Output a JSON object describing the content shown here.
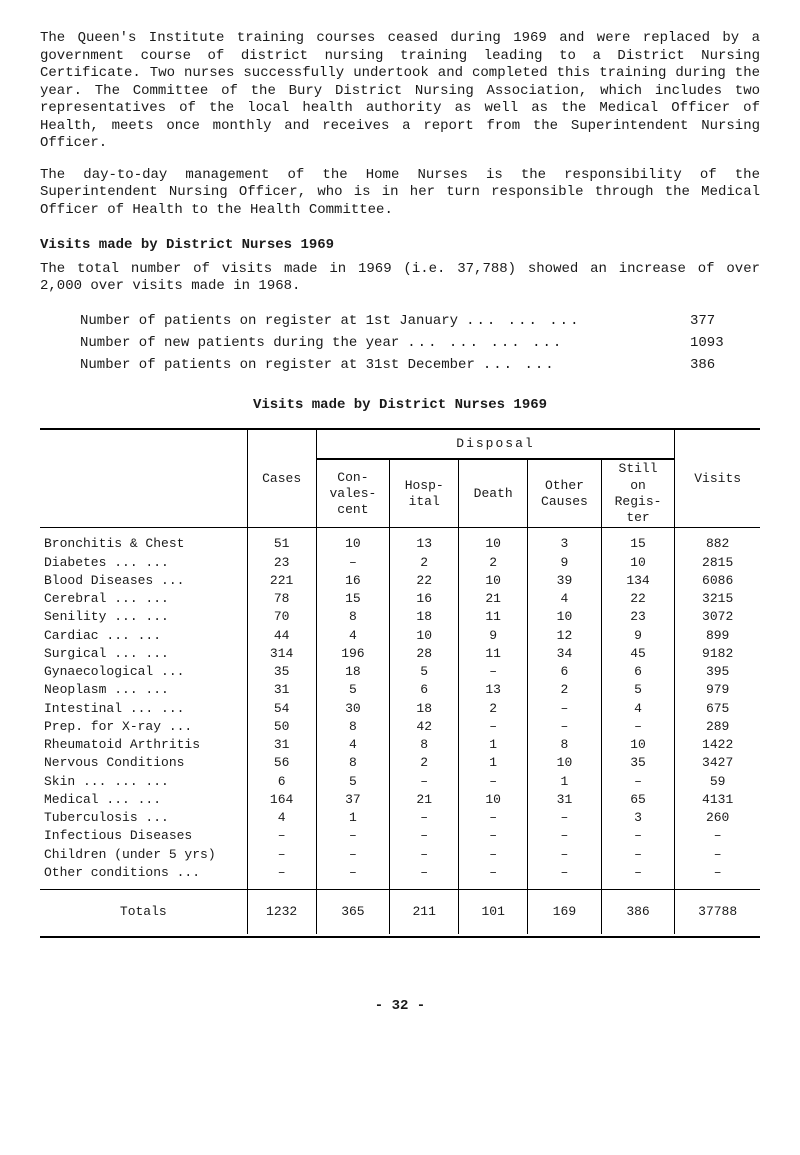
{
  "paragraphs": {
    "p1": "The Queen's Institute training courses ceased during 1969 and were replaced by a government course of district nursing training leading to a District Nursing Certificate. Two nurses successfully undertook and completed this training during the year. The Committee of the Bury District Nursing Association, which includes two representatives of the local health authority as well as the Medical Officer of Health, meets once monthly and receives a report from the Superintendent Nursing Officer.",
    "p2": "The day-to-day management of the Home Nurses is the responsibility of the Superintendent Nursing Officer, who is in her turn responsible through the Medical Officer of Health to the Health Committee.",
    "heading1": "Visits made by District Nurses 1969",
    "p3": "The total number of visits made in 1969 (i.e. 37,788) showed an increase of over 2,000 over visits made in 1968.",
    "table_title": "Visits made by District Nurses 1969"
  },
  "stats": [
    {
      "label": "Number of patients on register at 1st January",
      "fill": "...  ...  ...",
      "value": "377"
    },
    {
      "label": "Number of new patients during the year",
      "fill": "...  ...  ...  ...",
      "value": "1093"
    },
    {
      "label": "Number of patients on register at 31st December",
      "fill": "...  ...",
      "value": "386"
    }
  ],
  "table": {
    "headers": {
      "cases": "Cases",
      "disposal": "Disposal",
      "conval": "Con-\nvales-\ncent",
      "hosp": "Hosp-\nital",
      "death": "Death",
      "other": "Other\nCauses",
      "still": "Still\non\nRegis-\nter",
      "visits": "Visits"
    },
    "rows": [
      {
        "label": "Bronchitis & Chest",
        "cells": [
          "51",
          "10",
          "13",
          "10",
          "3",
          "15",
          "882"
        ]
      },
      {
        "label": "Diabetes   ...  ...",
        "cells": [
          "23",
          "–",
          "2",
          "2",
          "9",
          "10",
          "2815"
        ]
      },
      {
        "label": "Blood Diseases   ...",
        "cells": [
          "221",
          "16",
          "22",
          "10",
          "39",
          "134",
          "6086"
        ]
      },
      {
        "label": "Cerebral   ...  ...",
        "cells": [
          "78",
          "15",
          "16",
          "21",
          "4",
          "22",
          "3215"
        ]
      },
      {
        "label": "Senility   ...  ...",
        "cells": [
          "70",
          "8",
          "18",
          "11",
          "10",
          "23",
          "3072"
        ]
      },
      {
        "label": "Cardiac    ...  ...",
        "cells": [
          "44",
          "4",
          "10",
          "9",
          "12",
          "9",
          "899"
        ]
      },
      {
        "label": "Surgical   ...  ...",
        "cells": [
          "314",
          "196",
          "28",
          "11",
          "34",
          "45",
          "9182"
        ]
      },
      {
        "label": "Gynaecological   ...",
        "cells": [
          "35",
          "18",
          "5",
          "–",
          "6",
          "6",
          "395"
        ]
      },
      {
        "label": "Neoplasm   ...  ...",
        "cells": [
          "31",
          "5",
          "6",
          "13",
          "2",
          "5",
          "979"
        ]
      },
      {
        "label": "Intestinal ...  ...",
        "cells": [
          "54",
          "30",
          "18",
          "2",
          "–",
          "4",
          "675"
        ]
      },
      {
        "label": "Prep. for X-ray   ...",
        "cells": [
          "50",
          "8",
          "42",
          "–",
          "–",
          "–",
          "289"
        ]
      },
      {
        "label": "Rheumatoid Arthritis",
        "cells": [
          "31",
          "4",
          "8",
          "1",
          "8",
          "10",
          "1422"
        ]
      },
      {
        "label": "Nervous Conditions",
        "cells": [
          "56",
          "8",
          "2",
          "1",
          "10",
          "35",
          "3427"
        ]
      },
      {
        "label": "Skin  ...  ...  ...",
        "cells": [
          "6",
          "5",
          "–",
          "–",
          "1",
          "–",
          "59"
        ]
      },
      {
        "label": "Medical    ...  ...",
        "cells": [
          "164",
          "37",
          "21",
          "10",
          "31",
          "65",
          "4131"
        ]
      },
      {
        "label": "Tuberculosis    ...",
        "cells": [
          "4",
          "1",
          "–",
          "–",
          "–",
          "3",
          "260"
        ]
      },
      {
        "label": "Infectious Diseases",
        "cells": [
          "–",
          "–",
          "–",
          "–",
          "–",
          "–",
          "–"
        ]
      },
      {
        "label": "Children (under 5 yrs)",
        "cells": [
          "–",
          "–",
          "–",
          "–",
          "–",
          "–",
          "–"
        ]
      },
      {
        "label": "Other conditions ...",
        "cells": [
          "–",
          "–",
          "–",
          "–",
          "–",
          "–",
          "–"
        ]
      }
    ],
    "totals": {
      "label": "Totals",
      "cells": [
        "1232",
        "365",
        "211",
        "101",
        "169",
        "386",
        "37788"
      ]
    }
  },
  "page_number": "- 32 -"
}
